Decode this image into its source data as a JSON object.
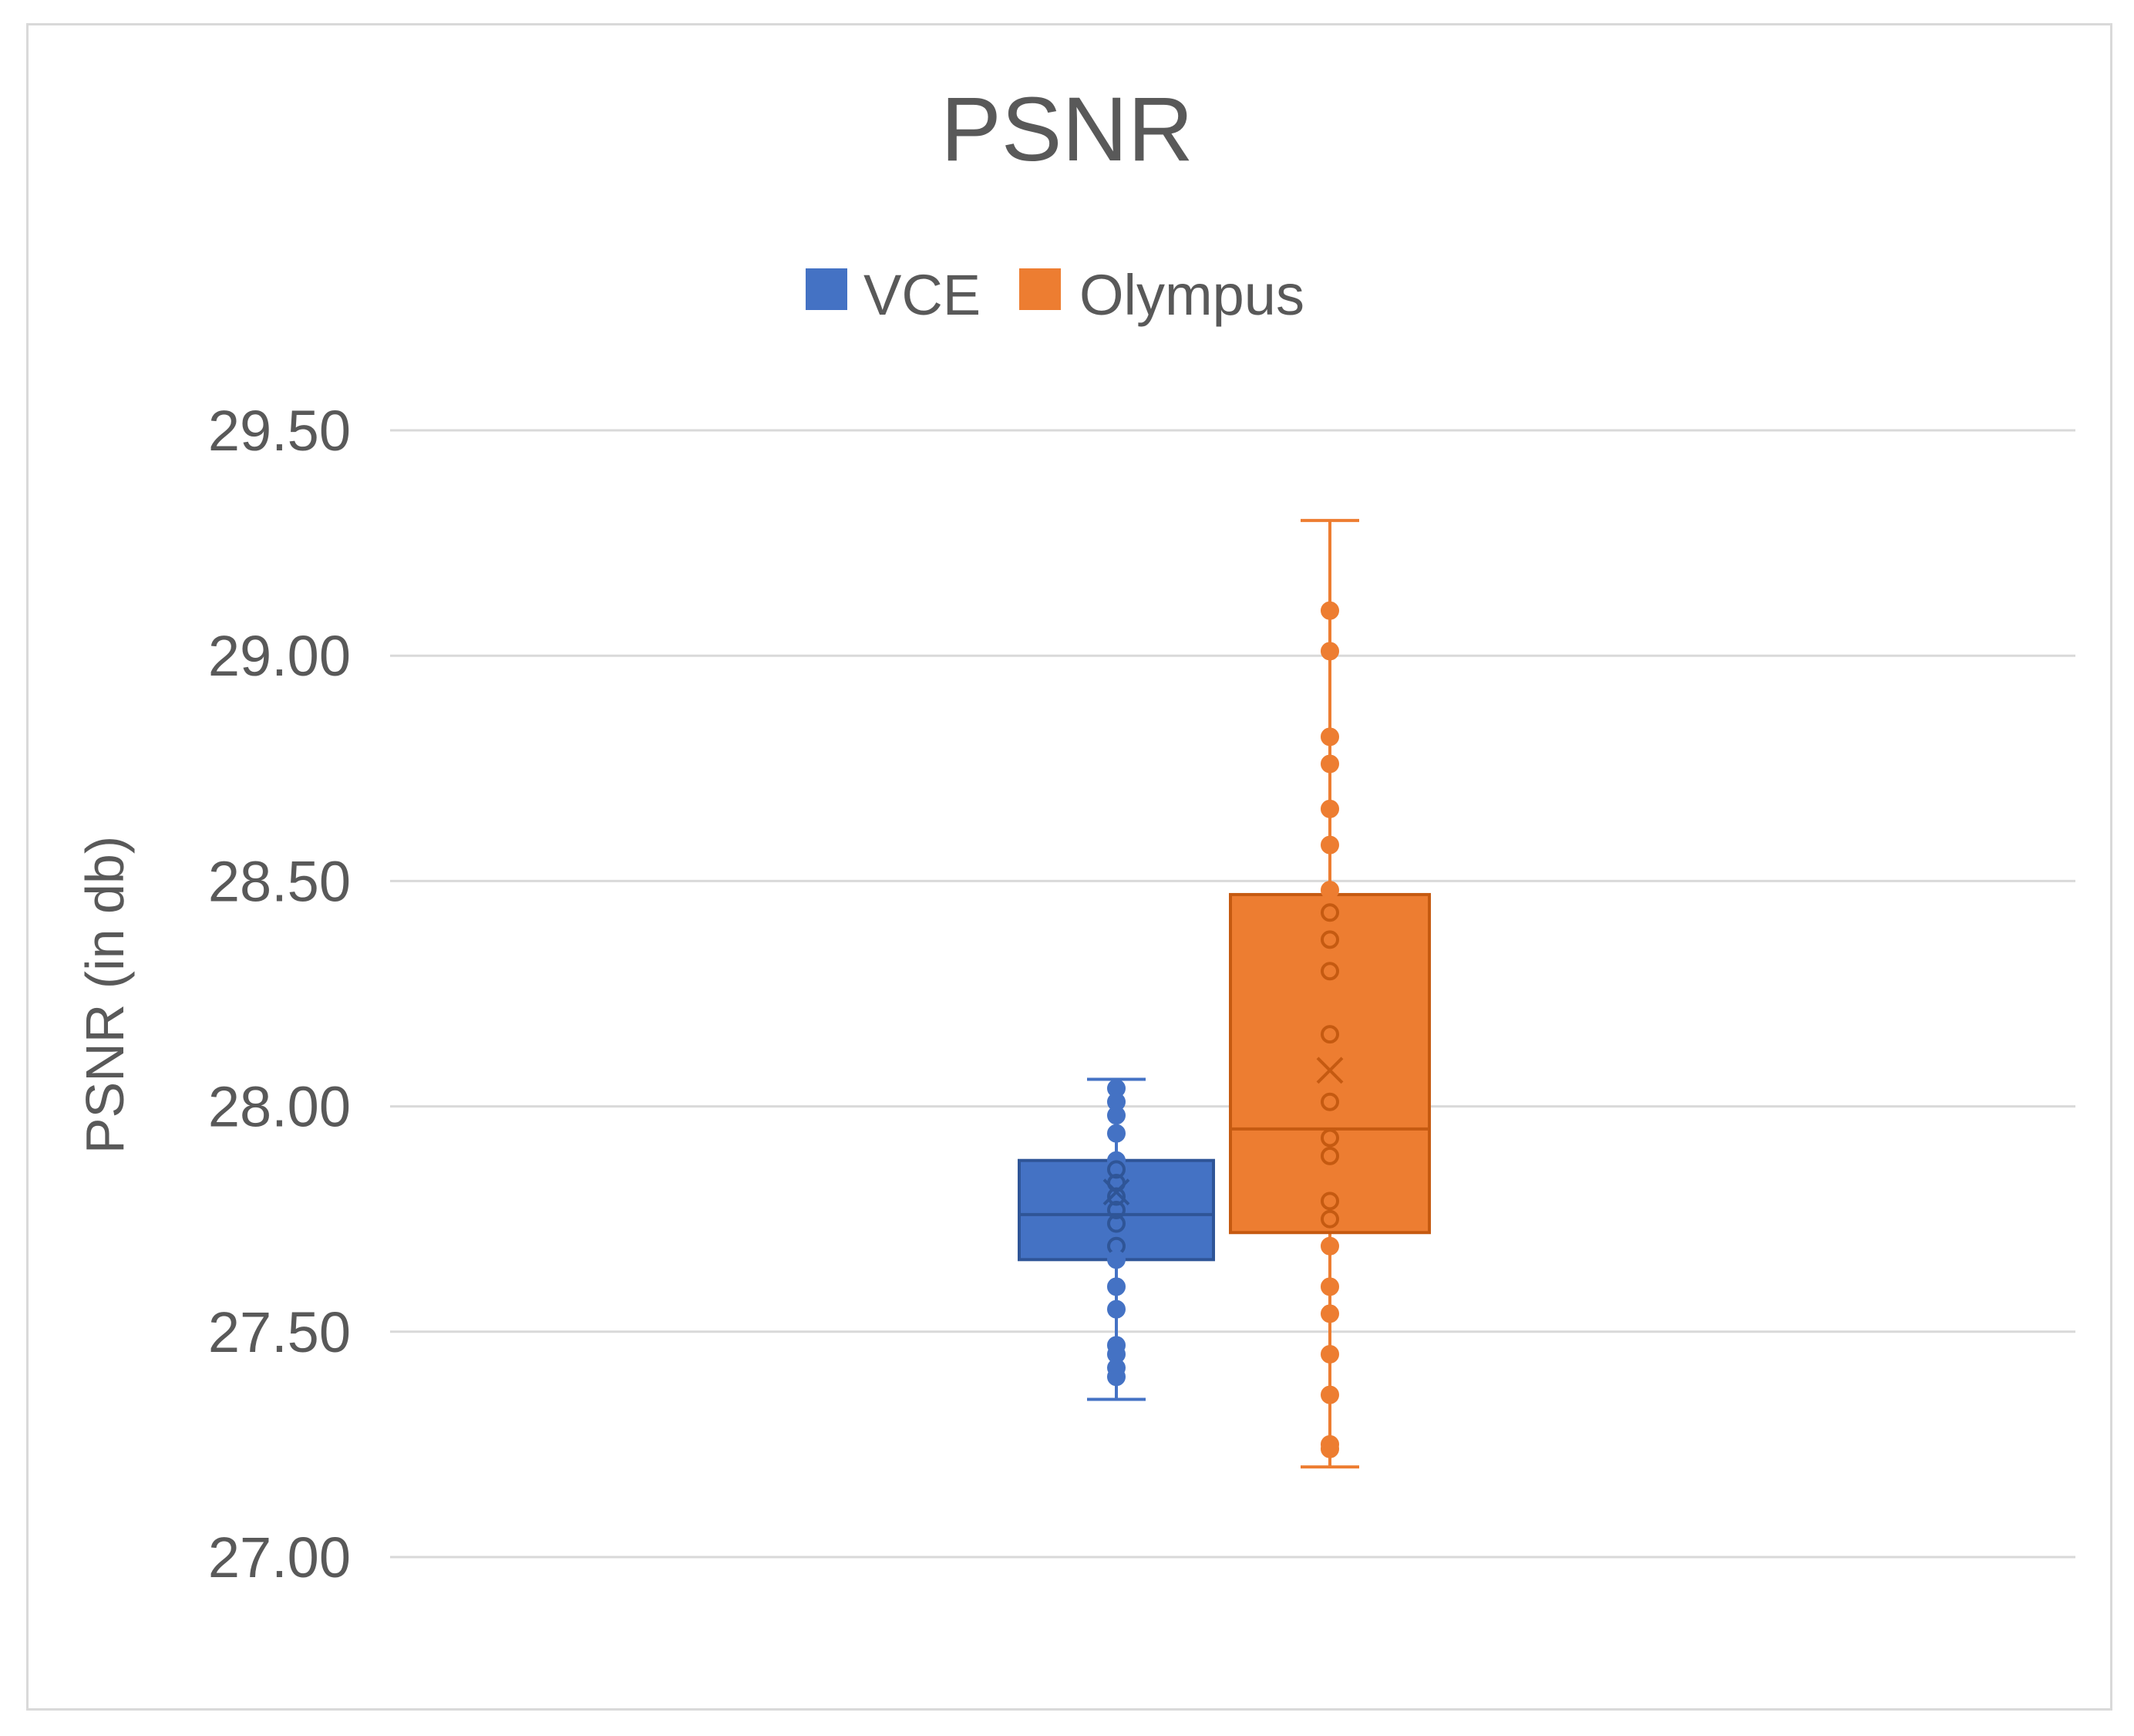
{
  "chart_data": {
    "type": "box",
    "title": "PSNR",
    "xlabel": "",
    "ylabel": "PSNR (in db)",
    "ylim": [
      27.0,
      29.5
    ],
    "yticks": [
      "29.50",
      "29.00",
      "28.50",
      "28.00",
      "27.50",
      "27.00"
    ],
    "ytick_values": [
      29.5,
      29.0,
      28.5,
      28.0,
      27.5,
      27.0
    ],
    "grid": true,
    "legend_position": "top",
    "series": [
      {
        "name": "VCE",
        "color": "#4472c4",
        "min": 27.35,
        "q1": 27.66,
        "median": 27.76,
        "q3": 27.88,
        "max": 28.06,
        "mean": 27.81,
        "points": [
          28.04,
          28.01,
          27.98,
          27.94,
          27.88,
          27.86,
          27.83,
          27.8,
          27.77,
          27.74,
          27.69,
          27.66,
          27.6,
          27.55,
          27.47,
          27.45,
          27.42,
          27.4
        ]
      },
      {
        "name": "Olympus",
        "color": "#ed7d31",
        "min": 27.2,
        "q1": 27.72,
        "median": 27.95,
        "q3": 28.47,
        "max": 29.3,
        "mean": 28.08,
        "points": [
          29.1,
          29.01,
          28.82,
          28.76,
          28.66,
          28.58,
          28.48,
          28.43,
          28.37,
          28.3,
          28.16,
          28.01,
          27.93,
          27.89,
          27.79,
          27.75,
          27.69,
          27.6,
          27.54,
          27.45,
          27.36,
          27.25,
          27.24
        ]
      }
    ]
  }
}
